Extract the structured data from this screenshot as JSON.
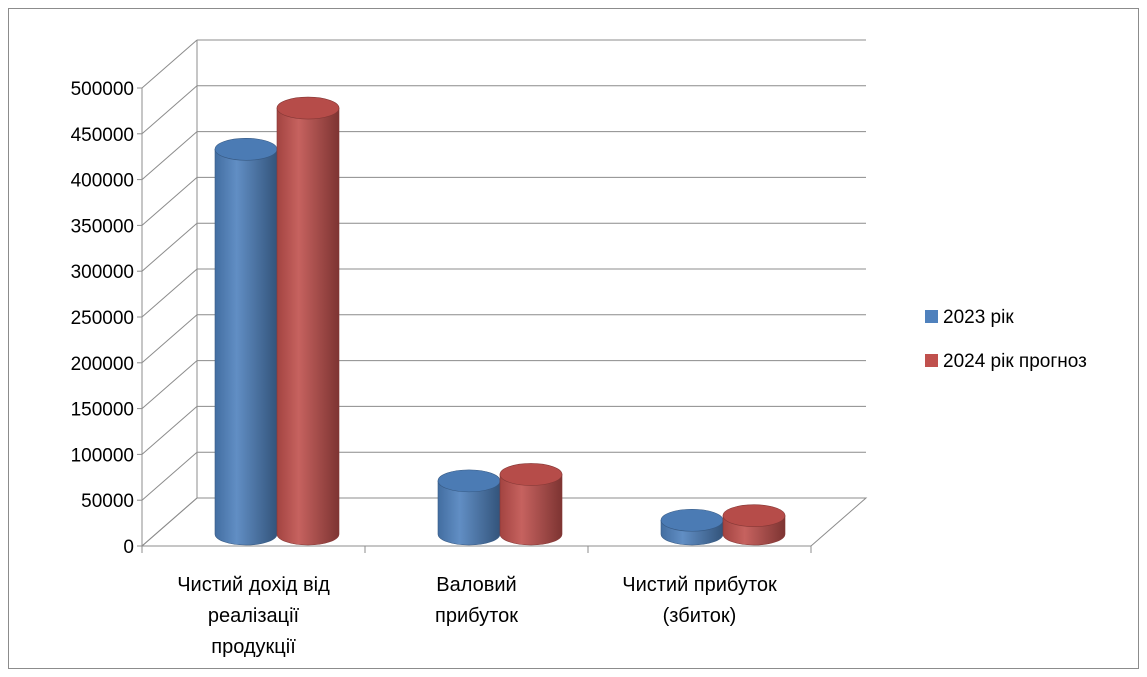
{
  "chart_data": {
    "type": "bar",
    "style": "3d-cylinder",
    "categories": [
      [
        "Чистий дохід від",
        "реалізації",
        "продукції"
      ],
      [
        "Валовий",
        "прибуток"
      ],
      [
        "Чистий прибуток",
        "(збиток)"
      ]
    ],
    "series": [
      {
        "name": "2023 рік",
        "color": "#4f81bd",
        "values": [
          420000,
          58000,
          15000
        ]
      },
      {
        "name": "2024 рік прогноз",
        "color": "#c0504d",
        "values": [
          465000,
          65000,
          20000
        ]
      }
    ],
    "yticks": [
      "0",
      "50000",
      "100000",
      "150000",
      "200000",
      "250000",
      "300000",
      "350000",
      "400000",
      "450000",
      "500000"
    ],
    "ylim": [
      0,
      500000
    ],
    "grid": true,
    "legend_position": "right",
    "title": "",
    "xlabel": "",
    "ylabel": ""
  }
}
